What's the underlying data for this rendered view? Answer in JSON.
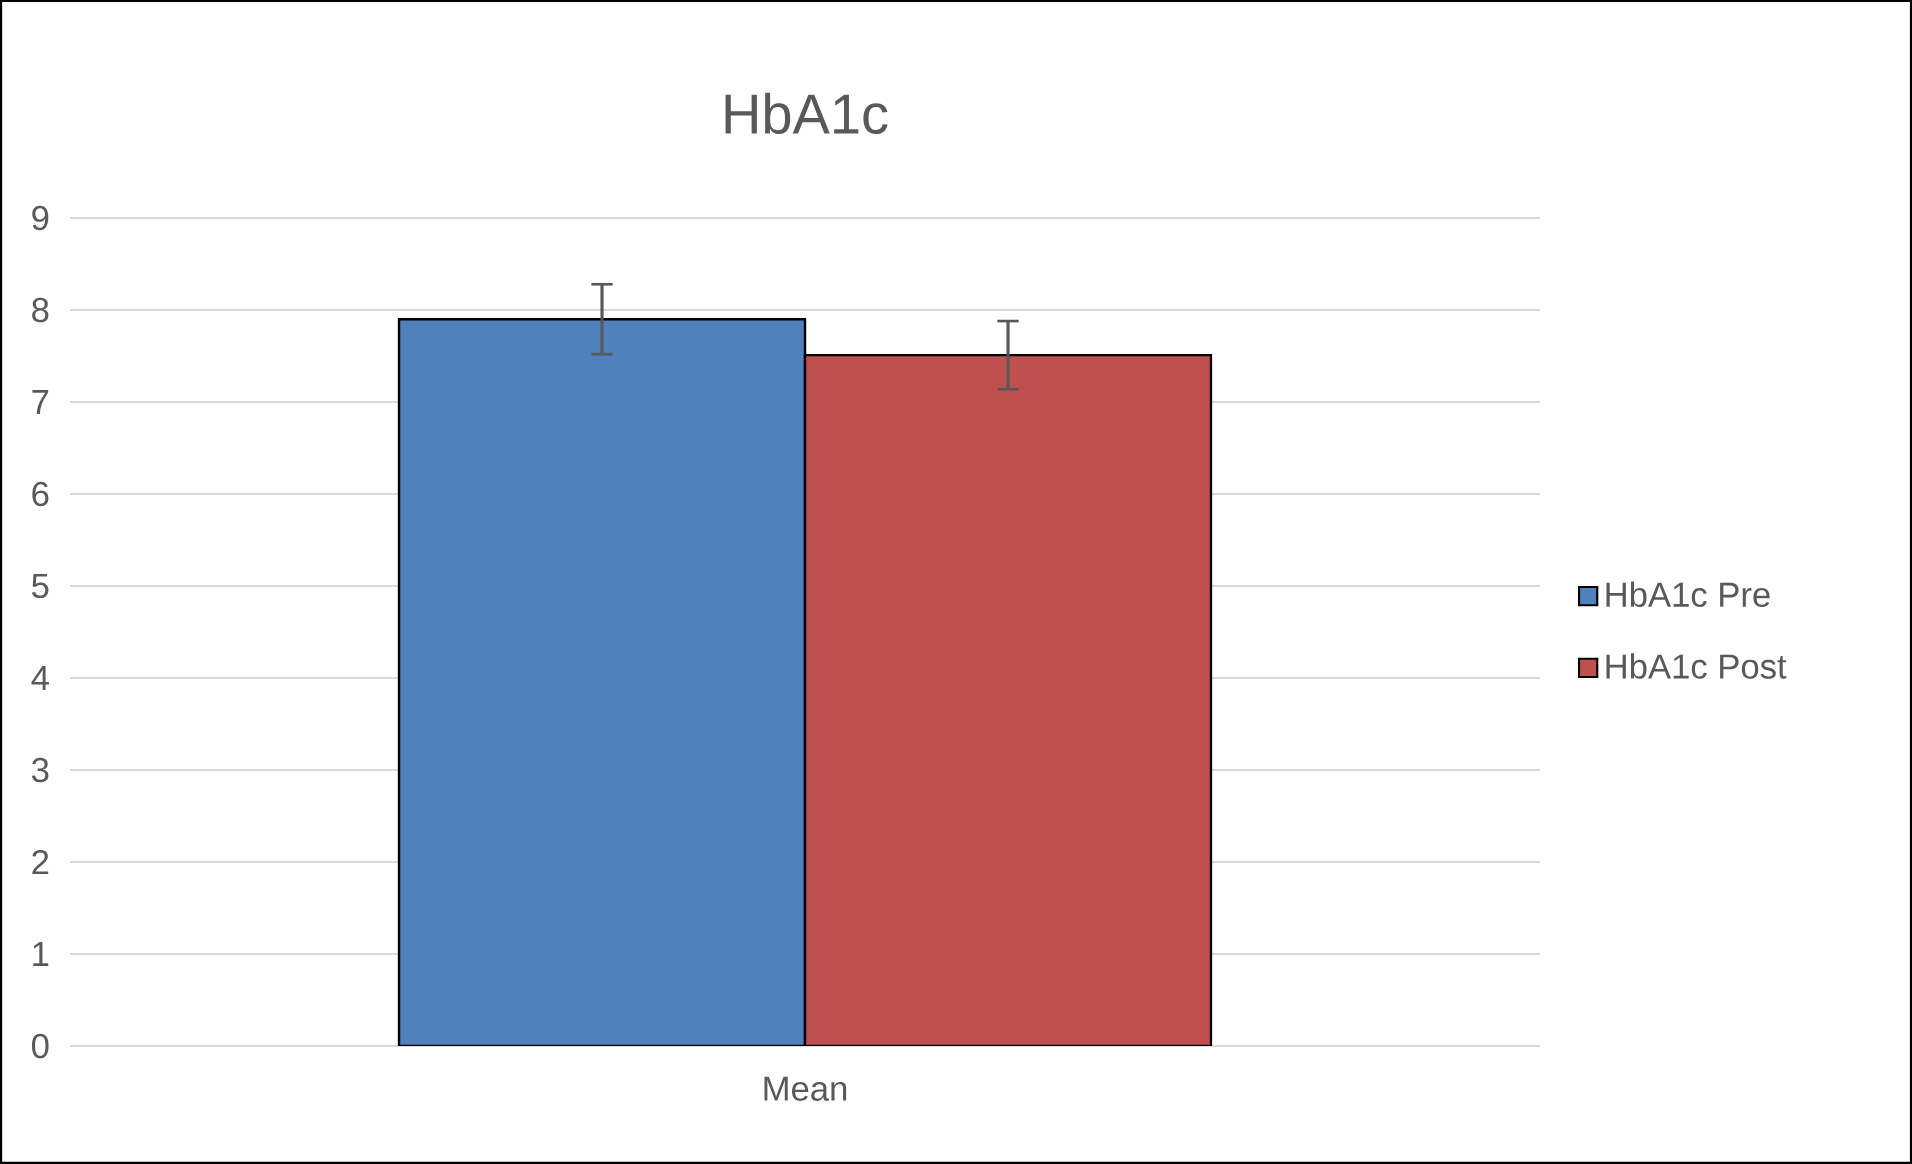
{
  "chart_data": {
    "type": "bar",
    "title": "HbA1c",
    "categories": [
      "Mean"
    ],
    "series": [
      {
        "name": "HbA1c Pre",
        "color": "#4f81bd",
        "values": [
          7.9
        ],
        "errors": [
          0.38
        ]
      },
      {
        "name": "HbA1c Post",
        "color": "#c0504d",
        "values": [
          7.51
        ],
        "errors": [
          0.37
        ]
      }
    ],
    "ylim": [
      0,
      9
    ],
    "yticks": [
      0,
      1,
      2,
      3,
      4,
      5,
      6,
      7,
      8,
      9
    ],
    "grid": "y",
    "legend": "right"
  }
}
